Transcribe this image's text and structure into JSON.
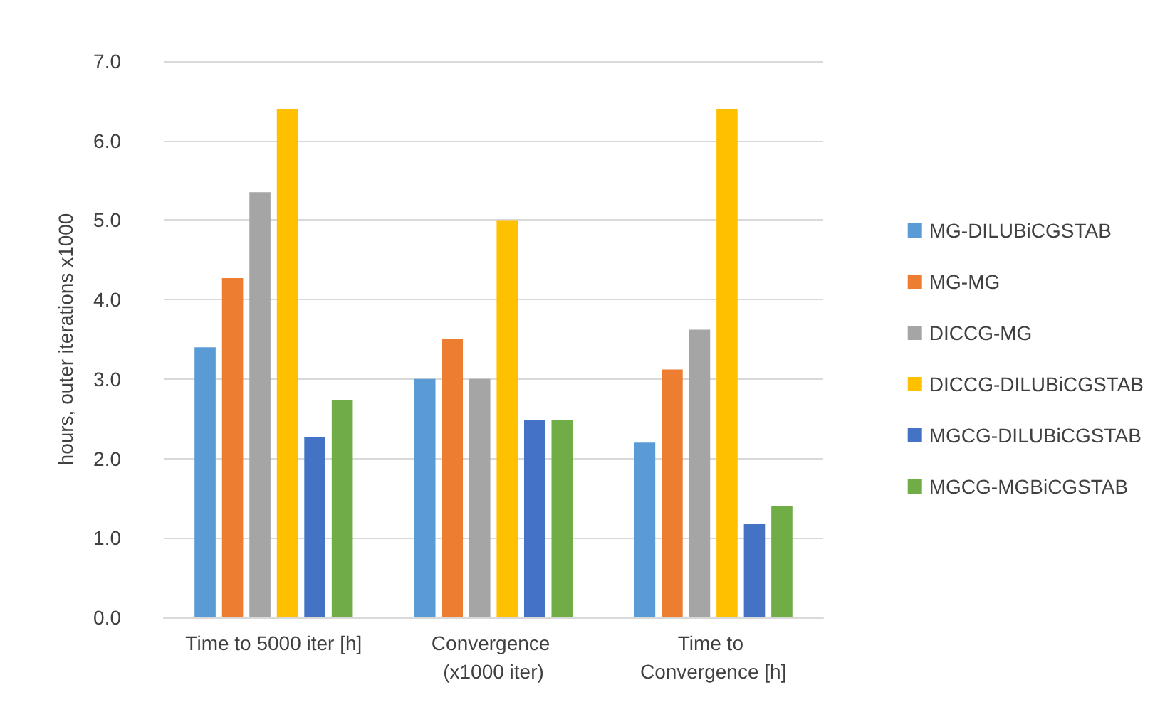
{
  "chart_data": {
    "type": "bar",
    "ylabel": "hours, outer iterations x1000",
    "categories": [
      "Time to 5000 iter [h]",
      "Convergence (x1000 iter)",
      "Time to Convergence [h]"
    ],
    "series": [
      {
        "name": "MG-DILUBiCGSTAB",
        "color": "#5b9bd5",
        "values": [
          3.4,
          3.0,
          2.2
        ]
      },
      {
        "name": "MG-MG",
        "color": "#ed7d31",
        "values": [
          4.27,
          3.5,
          3.12
        ]
      },
      {
        "name": "DICCG-MG",
        "color": "#a5a5a5",
        "values": [
          5.35,
          3.0,
          3.62
        ]
      },
      {
        "name": "DICCG-DILUBiCGSTAB",
        "color": "#ffc000",
        "values": [
          6.4,
          5.0,
          6.4
        ]
      },
      {
        "name": "MGCG-DILUBiCGSTAB",
        "color": "#4472c4",
        "values": [
          2.27,
          2.48,
          1.18
        ]
      },
      {
        "name": "MGCG-MGBiCGSTAB",
        "color": "#70ad47",
        "values": [
          2.73,
          2.48,
          1.4
        ]
      }
    ],
    "ylim": [
      0,
      7
    ],
    "yticks": [
      {
        "value": 0,
        "label": "0.0"
      },
      {
        "value": 1,
        "label": "1.0"
      },
      {
        "value": 2,
        "label": "2.0"
      },
      {
        "value": 3,
        "label": "3.0"
      },
      {
        "value": 4,
        "label": "4.0"
      },
      {
        "value": 5,
        "label": "5.0"
      },
      {
        "value": 6,
        "label": "6.0"
      },
      {
        "value": 7,
        "label": "7.0"
      }
    ],
    "grid": "y",
    "legend": "right"
  }
}
